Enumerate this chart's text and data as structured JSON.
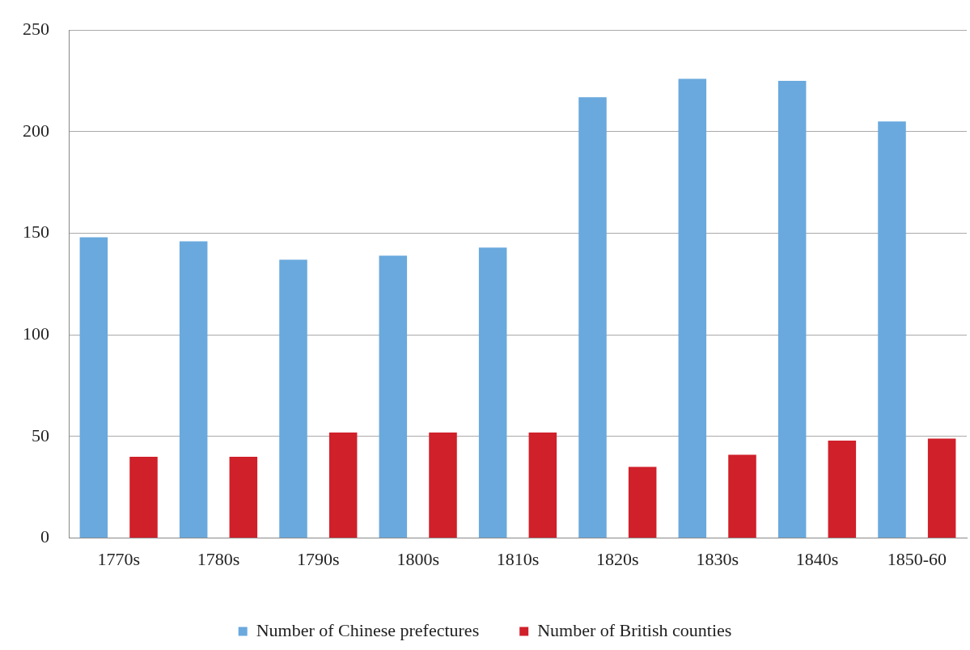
{
  "chart_data": {
    "type": "bar",
    "categories": [
      "1770s",
      "1780s",
      "1790s",
      "1800s",
      "1810s",
      "1820s",
      "1830s",
      "1840s",
      "1850-60"
    ],
    "series": [
      {
        "name": "Number of Chinese prefectures",
        "color": "#6aa9dd",
        "values": [
          148,
          146,
          137,
          139,
          143,
          217,
          226,
          225,
          205
        ]
      },
      {
        "name": "Number of British counties",
        "color": "#d0202a",
        "values": [
          40,
          40,
          52,
          52,
          52,
          35,
          41,
          48,
          49
        ]
      }
    ],
    "ylim": [
      0,
      250
    ],
    "yticks": [
      0,
      50,
      100,
      150,
      200,
      250
    ],
    "grid": "y",
    "legend": "bottom"
  }
}
